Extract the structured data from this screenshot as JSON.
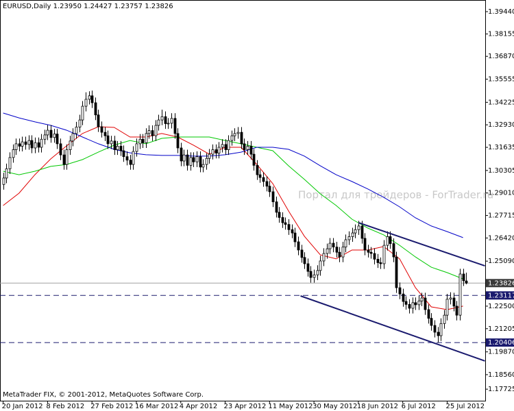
{
  "header": "EURUSD,Daily  1.23950 1.24427 1.23757 1.23826",
  "watermark": "Портал для трейдеров - ForTrader.ru",
  "copyright": "MetaTrader FIX, © 2001-2012, MetaQuotes Software Corp.",
  "chart_data": {
    "type": "candlestick",
    "up_color": "#ffffff",
    "down_color": "#000000",
    "outline_color": "#000000",
    "opens": [
      1.295,
      1.2987,
      1.304,
      1.3105,
      1.315,
      1.3184,
      1.317,
      1.3195,
      1.318,
      1.3203,
      1.316,
      1.319,
      1.3164,
      1.321,
      1.3235,
      1.3262,
      1.322,
      1.324,
      1.3184,
      1.312,
      1.3065,
      1.315,
      1.32,
      1.3243,
      1.328,
      1.3321,
      1.34,
      1.344,
      1.346,
      1.342,
      1.335,
      1.3282,
      1.325,
      1.323,
      1.3184,
      1.32,
      1.315,
      1.317,
      1.3144,
      1.311,
      1.309,
      1.3065,
      1.314,
      1.3184,
      1.321,
      1.319,
      1.3243,
      1.326,
      1.323,
      1.329,
      1.3321,
      1.334,
      1.33,
      1.3302,
      1.333,
      1.3243,
      1.316,
      1.3085,
      1.312,
      1.306,
      1.3105,
      1.308,
      1.311,
      1.305,
      1.3065,
      1.31,
      1.3124,
      1.315,
      1.313,
      1.3164,
      1.318,
      1.315,
      1.3203,
      1.323,
      1.3243,
      1.325,
      1.3184,
      1.315,
      1.317,
      1.3124,
      1.306,
      1.3006,
      1.299,
      1.2967,
      1.294,
      1.2908,
      1.285,
      1.279,
      1.276,
      1.273,
      1.272,
      1.269,
      1.2671,
      1.262,
      1.2573,
      1.253,
      1.2494,
      1.245,
      1.2415,
      1.243,
      1.2455,
      1.251,
      1.2553,
      1.258,
      1.2612,
      1.259,
      1.256,
      1.2533,
      1.259,
      1.2632,
      1.265,
      1.2671,
      1.269,
      1.2711,
      1.264,
      1.2573,
      1.256,
      1.2553,
      1.252,
      1.25,
      1.2494,
      1.26,
      1.265,
      1.261,
      1.2533,
      1.2356,
      1.232,
      1.2277,
      1.226,
      1.2238,
      1.227,
      1.2258,
      1.228,
      1.2297,
      1.223,
      1.218,
      1.2139,
      1.21,
      1.208,
      1.215,
      1.2198,
      1.229,
      1.2297,
      1.225,
      1.2198,
      1.2435,
      1.2395
    ],
    "highs": [
      1.3017,
      1.307,
      1.3135,
      1.318,
      1.3214,
      1.3214,
      1.3225,
      1.3225,
      1.3233,
      1.3233,
      1.322,
      1.322,
      1.324,
      1.3265,
      1.3292,
      1.3292,
      1.327,
      1.327,
      1.3214,
      1.315,
      1.318,
      1.323,
      1.3273,
      1.331,
      1.3351,
      1.343,
      1.348,
      1.3486,
      1.349,
      1.345,
      1.338,
      1.3312,
      1.328,
      1.326,
      1.323,
      1.323,
      1.32,
      1.32,
      1.3174,
      1.314,
      1.312,
      1.317,
      1.3214,
      1.324,
      1.324,
      1.3273,
      1.329,
      1.329,
      1.332,
      1.3351,
      1.338,
      1.337,
      1.3332,
      1.336,
      1.336,
      1.3273,
      1.319,
      1.315,
      1.315,
      1.3135,
      1.3135,
      1.314,
      1.314,
      1.3095,
      1.313,
      1.3154,
      1.318,
      1.318,
      1.3194,
      1.321,
      1.321,
      1.3233,
      1.326,
      1.3273,
      1.328,
      1.328,
      1.3214,
      1.32,
      1.32,
      1.3154,
      1.309,
      1.3036,
      1.302,
      1.2997,
      1.297,
      1.2938,
      1.288,
      1.282,
      1.279,
      1.276,
      1.275,
      1.272,
      1.2701,
      1.265,
      1.2603,
      1.256,
      1.2524,
      1.248,
      1.246,
      1.2485,
      1.254,
      1.2583,
      1.261,
      1.2642,
      1.2642,
      1.262,
      1.259,
      1.262,
      1.2662,
      1.268,
      1.2701,
      1.272,
      1.2741,
      1.2741,
      1.267,
      1.2603,
      1.259,
      1.2583,
      1.255,
      1.253,
      1.263,
      1.268,
      1.268,
      1.264,
      1.2563,
      1.2386,
      1.235,
      1.2307,
      1.229,
      1.23,
      1.23,
      1.231,
      1.2327,
      1.2327,
      1.226,
      1.221,
      1.2169,
      1.213,
      1.218,
      1.2228,
      1.232,
      1.233,
      1.2327,
      1.228,
      1.2465,
      1.2465,
      1.24427
    ],
    "lows": [
      1.292,
      1.2957,
      1.301,
      1.3075,
      1.312,
      1.314,
      1.314,
      1.315,
      1.315,
      1.313,
      1.313,
      1.3134,
      1.3134,
      1.318,
      1.3205,
      1.319,
      1.319,
      1.3154,
      1.309,
      1.3035,
      1.3035,
      1.312,
      1.317,
      1.3213,
      1.325,
      1.3291,
      1.337,
      1.341,
      1.339,
      1.332,
      1.3252,
      1.322,
      1.32,
      1.3154,
      1.3154,
      1.312,
      1.312,
      1.3114,
      1.308,
      1.306,
      1.3035,
      1.3035,
      1.311,
      1.3154,
      1.316,
      1.316,
      1.3213,
      1.32,
      1.32,
      1.326,
      1.3291,
      1.327,
      1.327,
      1.3272,
      1.3213,
      1.313,
      1.3055,
      1.3055,
      1.303,
      1.303,
      1.305,
      1.305,
      1.302,
      1.302,
      1.3035,
      1.307,
      1.3094,
      1.31,
      1.31,
      1.3134,
      1.312,
      1.312,
      1.3173,
      1.32,
      1.3213,
      1.3154,
      1.312,
      1.312,
      1.3094,
      1.303,
      1.2976,
      1.296,
      1.2937,
      1.291,
      1.2878,
      1.282,
      1.276,
      1.273,
      1.27,
      1.269,
      1.266,
      1.2641,
      1.259,
      1.2543,
      1.25,
      1.2464,
      1.242,
      1.2385,
      1.2385,
      1.24,
      1.2425,
      1.248,
      1.2523,
      1.255,
      1.256,
      1.253,
      1.2503,
      1.2503,
      1.256,
      1.2602,
      1.262,
      1.2641,
      1.266,
      1.261,
      1.2543,
      1.253,
      1.2523,
      1.249,
      1.247,
      1.2464,
      1.2464,
      1.257,
      1.258,
      1.2503,
      1.2326,
      1.229,
      1.2247,
      1.223,
      1.2208,
      1.2208,
      1.2228,
      1.2228,
      1.225,
      1.22,
      1.215,
      1.2109,
      1.207,
      1.2042,
      1.205,
      1.212,
      1.2168,
      1.226,
      1.222,
      1.2168,
      1.2168,
      1.2366,
      1.23757
    ],
    "closes": [
      1.2987,
      1.304,
      1.3105,
      1.315,
      1.3184,
      1.317,
      1.3195,
      1.318,
      1.3203,
      1.316,
      1.319,
      1.3164,
      1.321,
      1.3235,
      1.3262,
      1.322,
      1.324,
      1.3184,
      1.312,
      1.3065,
      1.315,
      1.32,
      1.3243,
      1.328,
      1.3321,
      1.34,
      1.344,
      1.346,
      1.342,
      1.335,
      1.3282,
      1.325,
      1.323,
      1.3184,
      1.32,
      1.315,
      1.317,
      1.3144,
      1.311,
      1.309,
      1.3065,
      1.314,
      1.3184,
      1.321,
      1.319,
      1.3243,
      1.326,
      1.323,
      1.329,
      1.3321,
      1.334,
      1.33,
      1.3302,
      1.333,
      1.3243,
      1.316,
      1.3085,
      1.312,
      1.306,
      1.3105,
      1.308,
      1.311,
      1.305,
      1.3065,
      1.31,
      1.3124,
      1.315,
      1.313,
      1.3164,
      1.318,
      1.315,
      1.3203,
      1.323,
      1.3243,
      1.325,
      1.3184,
      1.315,
      1.317,
      1.3124,
      1.306,
      1.3006,
      1.299,
      1.2967,
      1.294,
      1.2908,
      1.285,
      1.279,
      1.276,
      1.273,
      1.272,
      1.269,
      1.2671,
      1.262,
      1.2573,
      1.253,
      1.2494,
      1.245,
      1.2415,
      1.243,
      1.2455,
      1.251,
      1.2553,
      1.258,
      1.2612,
      1.259,
      1.256,
      1.2533,
      1.259,
      1.2632,
      1.265,
      1.2671,
      1.269,
      1.2711,
      1.264,
      1.2573,
      1.256,
      1.2553,
      1.252,
      1.25,
      1.2494,
      1.26,
      1.265,
      1.261,
      1.2533,
      1.2356,
      1.232,
      1.2277,
      1.226,
      1.2238,
      1.227,
      1.2258,
      1.228,
      1.2297,
      1.223,
      1.218,
      1.2139,
      1.21,
      1.208,
      1.215,
      1.2198,
      1.229,
      1.2297,
      1.225,
      1.2198,
      1.2435,
      1.2396,
      1.23826
    ],
    "overlays": [
      {
        "color": "#e00000",
        "x": [
          0,
          5,
          10,
          15,
          20,
          25,
          30,
          35,
          40,
          45,
          50,
          55,
          60,
          65,
          70,
          75,
          80,
          85,
          90,
          95,
          100,
          105,
          110,
          115,
          120,
          125,
          130,
          135,
          140,
          145
        ],
        "values": [
          1.2829,
          1.29,
          1.3006,
          1.3097,
          1.3172,
          1.3243,
          1.3282,
          1.3278,
          1.3223,
          1.3223,
          1.3243,
          1.3223,
          1.3176,
          1.3124,
          1.3164,
          1.3164,
          1.3065,
          1.2955,
          1.2797,
          1.2652,
          1.2545,
          1.2522,
          1.2573,
          1.2573,
          1.2593,
          1.2522,
          1.2356,
          1.2246,
          1.223,
          1.225
        ]
      },
      {
        "color": "#00c800",
        "x": [
          0,
          5,
          10,
          15,
          20,
          25,
          30,
          35,
          40,
          45,
          50,
          55,
          60,
          65,
          70,
          75,
          80,
          85,
          90,
          95,
          100,
          105,
          110,
          115,
          120,
          125,
          130,
          135,
          140,
          145
        ],
        "values": [
          1.3026,
          1.3006,
          1.3026,
          1.3054,
          1.3065,
          1.3093,
          1.3136,
          1.3176,
          1.3203,
          1.3184,
          1.3215,
          1.3223,
          1.3223,
          1.3223,
          1.3203,
          1.3184,
          1.3164,
          1.3144,
          1.3057,
          1.2979,
          1.2896,
          1.2829,
          1.275,
          1.2699,
          1.266,
          1.26,
          1.2533,
          1.2474,
          1.2443,
          1.2407
        ]
      },
      {
        "color": "#0000c8",
        "x": [
          0,
          5,
          10,
          15,
          20,
          25,
          30,
          35,
          40,
          45,
          50,
          55,
          60,
          65,
          70,
          75,
          80,
          85,
          90,
          95,
          100,
          105,
          110,
          115,
          120,
          125,
          130,
          135,
          140,
          145
        ],
        "values": [
          1.3361,
          1.3333,
          1.331,
          1.329,
          1.3262,
          1.3223,
          1.3184,
          1.3152,
          1.3132,
          1.3121,
          1.3117,
          1.3117,
          1.3113,
          1.3113,
          1.3121,
          1.3136,
          1.3164,
          1.3164,
          1.3152,
          1.3113,
          1.3057,
          1.3006,
          1.2967,
          1.2924,
          1.2876,
          1.2821,
          1.2758,
          1.2711,
          1.2679,
          1.2644
        ]
      }
    ],
    "trendlines": [
      {
        "color": "#1a1a6e",
        "x": [
          112.07,
          151.9
        ],
        "values": [
          1.273,
          1.2482
        ]
      },
      {
        "color": "#1a1a6e",
        "x": [
          93.75,
          151.9
        ],
        "values": [
          1.2309,
          1.1935
        ]
      }
    ],
    "hlines": [
      {
        "value": 1.23117,
        "color": "#1a1a6e",
        "dashed": true
      },
      {
        "value": 1.20406,
        "color": "#1a1a6e",
        "dashed": true
      }
    ],
    "price_line": {
      "value": 1.23826,
      "color": "#a0a0a0",
      "label_bg": "#3a3a3a"
    },
    "xlim": [
      -1,
      152
    ],
    "xticks": [
      {
        "value": 0,
        "label": "20 Jan 2012"
      },
      {
        "value": 14,
        "label": "8 Feb 2012"
      },
      {
        "value": 28,
        "label": "27 Feb 2012"
      },
      {
        "value": 42,
        "label": "16 Mar 2012"
      },
      {
        "value": 56,
        "label": "4 Apr 2012"
      },
      {
        "value": 70,
        "label": "23 Apr 2012"
      },
      {
        "value": 84,
        "label": "11 May 2012"
      },
      {
        "value": 98,
        "label": "30 May 2012"
      },
      {
        "value": 112,
        "label": "18 Jun 2012"
      },
      {
        "value": 126,
        "label": "6 Jul 2012"
      },
      {
        "value": 140,
        "label": "25 Jul 2012"
      }
    ],
    "ylim": [
      1.1706,
      1.4011
    ],
    "yticks": [
      {
        "value": 1.3944,
        "label": "1.39440"
      },
      1.38155,
      {
        "value": 1.3687,
        "label": "1.36870"
      },
      1.35555,
      1.34225,
      {
        "value": 1.3293,
        "label": "1.32930"
      },
      1.31635,
      1.30305,
      {
        "value": 1.2901,
        "label": "1.29010"
      },
      1.27715,
      {
        "value": 1.2642,
        "label": "1.26420"
      },
      {
        "value": 1.2509,
        "label": "1.25090"
      },
      {
        "value": 1.225,
        "label": "1.22500"
      },
      1.21205,
      {
        "value": 1.1987,
        "label": "1.19870"
      },
      {
        "value": 1.1856,
        "label": "1.18560"
      },
      1.17725
    ],
    "grid": false
  }
}
